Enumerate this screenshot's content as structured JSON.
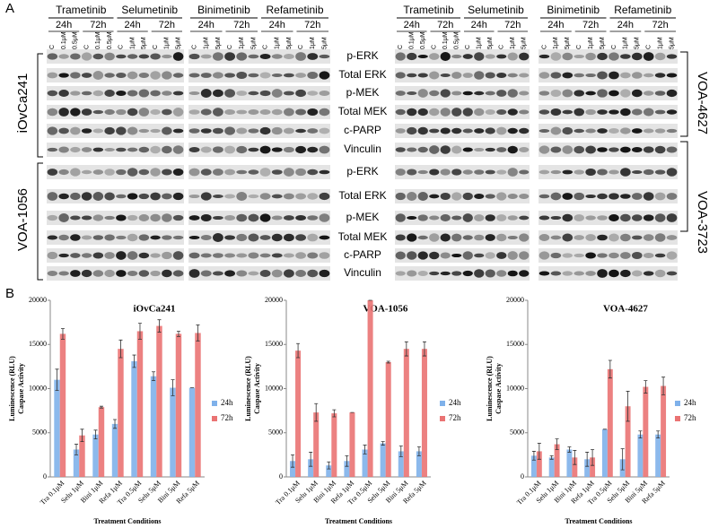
{
  "panel_a": {
    "label": "A",
    "drugs": [
      {
        "name": "Trametinib",
        "times": [
          "24h",
          "72h"
        ],
        "doses": [
          "C",
          "0.1μM",
          "0.5μM",
          "C",
          "0.1μM",
          "0.5μM"
        ]
      },
      {
        "name": "Selumetinib",
        "times": [
          "24h",
          "72h"
        ],
        "doses": [
          "C",
          "1μM",
          "5μM",
          "C",
          "1μM",
          "5μM"
        ]
      },
      {
        "name": "Binimetinib",
        "times": [
          "24h",
          "72h"
        ],
        "doses": [
          "C",
          "1μM",
          "5μM",
          "C",
          "1μM",
          "5μM"
        ]
      },
      {
        "name": "Refametinib",
        "times": [
          "24h",
          "72h"
        ],
        "doses": [
          "C",
          "1μM",
          "5μM",
          "C",
          "1μM",
          "5μM"
        ]
      }
    ],
    "proteins": [
      "p-ERK",
      "Total ERK",
      "p-MEK",
      "Total MEK",
      "c-PARP",
      "Vinculin"
    ],
    "left_cell_lines": [
      "iOvCa241",
      "VOA-1056"
    ],
    "right_cell_lines": [
      "VOA-4627",
      "VOA-3723"
    ]
  },
  "panel_b_label": "B",
  "chart_data": [
    {
      "type": "bar",
      "title": "iOvCa241",
      "y_label": "Luminescence (RLU)",
      "y_label_2": "Caspase Activity",
      "x_label": "Treatment Conditions",
      "categories": [
        "Tra 0.1μM",
        "Selu 1μM",
        "Bini 1μM",
        "Refa 1μM",
        "Tra 0.5μM",
        "Selu 5μM",
        "Bini 5μM",
        "Refa 5μM"
      ],
      "ylim": [
        0,
        20000
      ],
      "yticks": [
        0,
        5000,
        10000,
        15000,
        20000
      ],
      "series": [
        {
          "name": "24h",
          "color": "#7fb1ea",
          "values": [
            11000,
            3100,
            4800,
            6000,
            13100,
            11400,
            10100,
            10100
          ],
          "errors": [
            1200,
            600,
            500,
            500,
            700,
            500,
            900,
            0
          ]
        },
        {
          "name": "72h",
          "color": "#ea7373",
          "values": [
            16200,
            4700,
            7900,
            14500,
            16500,
            17100,
            16200,
            16300
          ],
          "errors": [
            600,
            700,
            100,
            1000,
            900,
            700,
            300,
            900
          ]
        }
      ]
    },
    {
      "type": "bar",
      "title": "VOA-1056",
      "y_label": "Luminescence (RLU)",
      "y_label_2": "Caspase Activity",
      "x_label": "Treatment Conditions",
      "categories": [
        "Tra 0.1μM",
        "Selu 1μM",
        "Bini 1μM",
        "Refa 1μM",
        "Tra 0.5μM",
        "Selu 5μM",
        "Bini 5μM",
        "Refa 5μM"
      ],
      "ylim": [
        0,
        20000
      ],
      "yticks": [
        0,
        5000,
        10000,
        15000,
        20000
      ],
      "series": [
        {
          "name": "24h",
          "color": "#7fb1ea",
          "values": [
            1800,
            2000,
            1300,
            1800,
            3100,
            3800,
            2900,
            2900
          ],
          "errors": [
            700,
            800,
            400,
            600,
            500,
            200,
            600,
            500
          ]
        },
        {
          "name": "72h",
          "color": "#ea7373",
          "values": [
            14300,
            7300,
            7200,
            7300,
            20000,
            13000,
            14500,
            14500
          ],
          "errors": [
            800,
            1000,
            400,
            0,
            0,
            100,
            800,
            800
          ]
        }
      ]
    },
    {
      "type": "bar",
      "title": "VOA-4627",
      "y_label": "Luminescence (RLU)",
      "y_label_2": "Caspase Activity",
      "x_label": "Treatment Conditions",
      "categories": [
        "Tra 0.1μM",
        "Selu 1μM",
        "Bini 1μM",
        "Refa 1μM",
        "Tra 0.5μM",
        "Selu 5μM",
        "Bini 5μM",
        "Refa 5μM"
      ],
      "ylim": [
        0,
        20000
      ],
      "yticks": [
        0,
        5000,
        10000,
        15000,
        20000
      ],
      "series": [
        {
          "name": "24h",
          "color": "#7fb1ea",
          "values": [
            2400,
            2200,
            3100,
            2000,
            5400,
            2000,
            4800,
            4800
          ],
          "errors": [
            500,
            200,
            300,
            800,
            0,
            1200,
            400,
            400
          ]
        },
        {
          "name": "72h",
          "color": "#ea7373",
          "values": [
            2900,
            3700,
            2200,
            2200,
            12200,
            8000,
            10200,
            10300
          ],
          "errors": [
            900,
            600,
            800,
            900,
            1000,
            1700,
            700,
            1000
          ]
        }
      ]
    }
  ]
}
